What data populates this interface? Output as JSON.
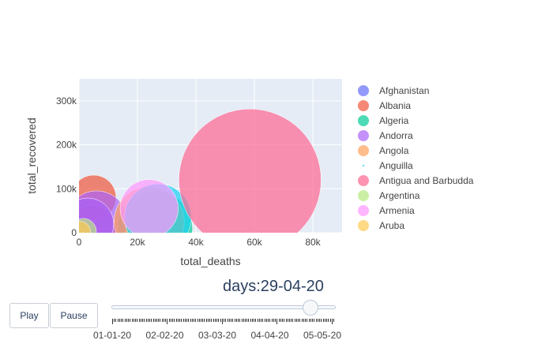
{
  "chart_data": {
    "type": "scatter",
    "xlabel": "total_deaths",
    "ylabel": "total_recovered",
    "xlim": [
      0,
      90000
    ],
    "ylim": [
      0,
      350000
    ],
    "x_ticks": [
      0,
      20000,
      40000,
      60000,
      80000
    ],
    "x_tick_labels": [
      "0",
      "20k",
      "40k",
      "60k",
      "80k"
    ],
    "y_ticks": [
      0,
      100000,
      200000,
      300000
    ],
    "y_tick_labels": [
      "0",
      "100k",
      "200k",
      "300k"
    ],
    "grid": true,
    "legend_placement": "right",
    "series": [
      {
        "name": "Afghanistan",
        "color": "#636efa",
        "points": [
          {
            "x": 2500,
            "y": 15000,
            "size": 12000
          },
          {
            "x": 400,
            "y": 5000,
            "size": 4000
          }
        ]
      },
      {
        "name": "Albania",
        "color": "#EF553B",
        "points": [
          {
            "x": 5000,
            "y": 80000,
            "size": 9000
          },
          {
            "x": 4500,
            "y": 10000,
            "size": 10000
          }
        ]
      },
      {
        "name": "Algeria",
        "color": "#00cc96",
        "points": [
          {
            "x": 26000,
            "y": 10000,
            "size": 25000
          }
        ]
      },
      {
        "name": "Andorra",
        "color": "#ab63fa",
        "points": [
          {
            "x": 6000,
            "y": 25000,
            "size": 17000
          },
          {
            "x": 3000,
            "y": 20000,
            "size": 12000
          }
        ]
      },
      {
        "name": "Angola",
        "color": "#FFA15A",
        "points": [
          {
            "x": 24000,
            "y": 25000,
            "size": 22000
          }
        ]
      },
      {
        "name": "Anguilla",
        "color": "#19d3f3",
        "points": [
          {
            "x": 27000,
            "y": 35000,
            "size": 20000
          }
        ]
      },
      {
        "name": "Antigua and Barbudda",
        "color": "#FF6692",
        "points": [
          {
            "x": 58500,
            "y": 120000,
            "size": 90000
          }
        ]
      },
      {
        "name": "Argentina",
        "color": "#B6E880",
        "points": [
          {
            "x": 1500,
            "y": 3000,
            "size": 3000
          }
        ]
      },
      {
        "name": "Armenia",
        "color": "#FF97FF",
        "points": [
          {
            "x": 24000,
            "y": 55000,
            "size": 15000
          }
        ]
      },
      {
        "name": "Aruba",
        "color": "#FECB52",
        "points": [
          {
            "x": 300,
            "y": 2000,
            "size": 2000
          }
        ]
      }
    ]
  },
  "slider": {
    "current_label": "days:29-04-20",
    "current_fraction": 0.905,
    "labels": [
      "01-01-20",
      "02-02-20",
      "03-03-20",
      "04-04-20",
      "05-05-20"
    ]
  },
  "controls": {
    "play_label": "Play",
    "pause_label": "Pause"
  }
}
